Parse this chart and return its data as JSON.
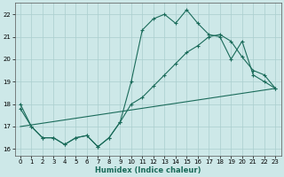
{
  "xlabel": "Humidex (Indice chaleur)",
  "xlim": [
    -0.5,
    23.5
  ],
  "ylim": [
    15.7,
    22.5
  ],
  "yticks": [
    16,
    17,
    18,
    19,
    20,
    21,
    22
  ],
  "xticks": [
    0,
    1,
    2,
    3,
    4,
    5,
    6,
    7,
    8,
    9,
    10,
    11,
    12,
    13,
    14,
    15,
    16,
    17,
    18,
    19,
    20,
    21,
    22,
    23
  ],
  "background_color": "#cde8e8",
  "grid_color": "#aacece",
  "line_color": "#1a6b5a",
  "line1_x": [
    0,
    1,
    2,
    3,
    4,
    5,
    6,
    7,
    8,
    9,
    10,
    11,
    12,
    13,
    14,
    15,
    16,
    17,
    18,
    19,
    20,
    21,
    22,
    23
  ],
  "line1_y": [
    18.0,
    17.0,
    16.5,
    16.5,
    16.2,
    16.5,
    16.6,
    16.1,
    16.5,
    17.2,
    19.0,
    21.3,
    21.8,
    22.0,
    21.6,
    22.2,
    21.6,
    21.1,
    21.0,
    20.0,
    20.8,
    19.3,
    19.0,
    18.7
  ],
  "line2_x": [
    0,
    1,
    2,
    3,
    4,
    5,
    6,
    7,
    8,
    9,
    10,
    11,
    12,
    13,
    14,
    15,
    16,
    17,
    18,
    19,
    20,
    21,
    22,
    23
  ],
  "line2_y": [
    17.8,
    17.0,
    16.5,
    16.5,
    16.2,
    16.5,
    16.6,
    16.1,
    16.5,
    17.2,
    18.0,
    18.3,
    18.8,
    19.3,
    19.8,
    20.3,
    20.6,
    21.0,
    21.1,
    20.8,
    20.1,
    19.5,
    19.3,
    18.7
  ],
  "line3_x": [
    0,
    23
  ],
  "line3_y": [
    17.0,
    18.7
  ]
}
